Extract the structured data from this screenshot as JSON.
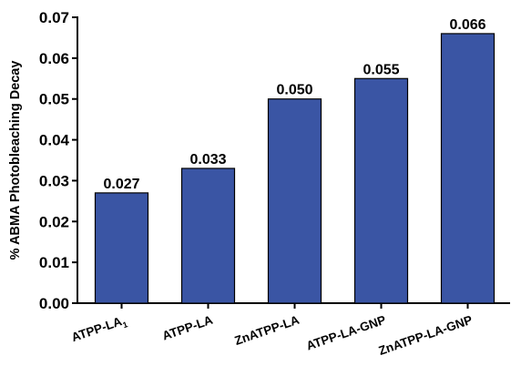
{
  "chart_data": {
    "type": "bar",
    "title": "",
    "xlabel": "",
    "ylabel": "% ABMA Photobleaching Decay",
    "ylim": [
      0,
      0.07
    ],
    "yticks": [
      "0.00",
      "0.01",
      "0.02",
      "0.03",
      "0.04",
      "0.05",
      "0.06",
      "0.07"
    ],
    "categories": [
      "ATPP-LA",
      "ATPP-LA",
      "ZnATPP-LA",
      "ATPP-LA-GNP",
      "ZnATPP-LA-GNP"
    ],
    "category_subscripts": [
      "1",
      "",
      "",
      "",
      ""
    ],
    "values": [
      0.027,
      0.033,
      0.05,
      0.055,
      0.066
    ],
    "value_labels": [
      "0.027",
      "0.033",
      "0.050",
      "0.055",
      "0.066"
    ],
    "bar_color": "#3a55a4",
    "legend": "none",
    "grid": false
  }
}
